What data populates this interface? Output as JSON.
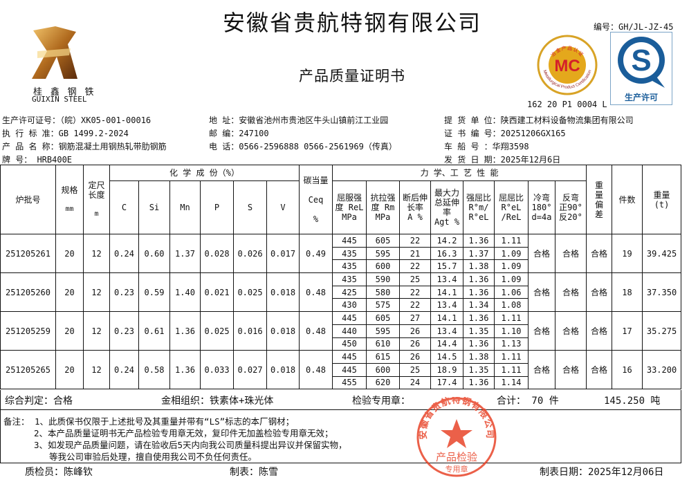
{
  "company": "安徽省贵航特钢有限公司",
  "doc_title": "产品质量证明书",
  "doc_number": "编号：GH/JL-JZ-45",
  "logo": {
    "cn": "桂 鑫 钢 铁",
    "en": "GUIXIN STEEL"
  },
  "mc_mark": {
    "letters": "MC",
    "ring_text_cn": "冶金产品认证",
    "ring_text_en": "Metallurgical Product Certification",
    "code": "162 20 P1 0004 L"
  },
  "qs_mark": {
    "letter": "S",
    "caption": "生产许可"
  },
  "info": {
    "license": "生产许可证号：（皖）XK05-001-00016",
    "standard": "执 行 标 准：GB 1499.2-2024",
    "product": "产 品 名 称：钢筋混凝土用钢热轧带肋钢筋",
    "grade": "牌       号：    HRB400E",
    "address": "地   址：安徽省池州市贵池区牛头山镇前江工业园",
    "postcode": "邮   编：247100",
    "phone": "电   话：0566-2596888  0566-2561969（传真）",
    "consignee": "提 货 单 位：陕西建工材料设备物流集团有限公司",
    "cert_no": "证 书 编 号：20251206GX165",
    "vehicle": "车   船   号 ：华翔3598",
    "ship_date": "发 货 日 期：2025年12月6日"
  },
  "table_headers": {
    "batch": "炉批号",
    "spec": "规格",
    "spec_unit": "mm",
    "length": "定尺长度",
    "length_unit": "m",
    "chem_group": "化 学 成 份（%）",
    "chem": [
      "C",
      "Si",
      "Mn",
      "P",
      "S",
      "V"
    ],
    "ceq": "碳当量",
    "ceq_sym": "Ceq",
    "ceq_unit": "%",
    "mech_group": "力 学、工 艺 性 能",
    "mech": [
      "屈服强度 ReL MPa",
      "抗拉强度 Rm MPa",
      "断后伸长率 A %",
      "最大力总延伸率 Agt %",
      "强屈比 R°m/ R°eL",
      "屈屈比 R°eL /ReL",
      "冷弯 180° d=4a",
      "反弯 正90° 反20°"
    ],
    "weight_dev": "重量偏差",
    "pieces": "件数",
    "weight": "重量 (t)"
  },
  "rows": [
    {
      "batch": "251205261",
      "spec": "20",
      "length": "12",
      "chem": [
        "0.24",
        "0.60",
        "1.37",
        "0.028",
        "0.026",
        "0.017"
      ],
      "ceq": "0.49",
      "mech": [
        [
          "445",
          "605",
          "22",
          "14.2",
          "1.36",
          "1.11"
        ],
        [
          "435",
          "595",
          "21",
          "16.3",
          "1.37",
          "1.09"
        ],
        [
          "435",
          "600",
          "22",
          "15.7",
          "1.38",
          "1.09"
        ]
      ],
      "cold_bend": "合格",
      "reverse_bend": "合格",
      "weight_dev": "合格",
      "pieces": "19",
      "weight": "39.425"
    },
    {
      "batch": "251205260",
      "spec": "20",
      "length": "12",
      "chem": [
        "0.23",
        "0.59",
        "1.40",
        "0.021",
        "0.025",
        "0.018"
      ],
      "ceq": "0.48",
      "mech": [
        [
          "435",
          "590",
          "25",
          "13.4",
          "1.36",
          "1.09"
        ],
        [
          "425",
          "580",
          "22",
          "14.1",
          "1.36",
          "1.06"
        ],
        [
          "430",
          "575",
          "22",
          "13.4",
          "1.34",
          "1.08"
        ]
      ],
      "cold_bend": "合格",
      "reverse_bend": "合格",
      "weight_dev": "合格",
      "pieces": "18",
      "weight": "37.350"
    },
    {
      "batch": "251205259",
      "spec": "20",
      "length": "12",
      "chem": [
        "0.23",
        "0.61",
        "1.36",
        "0.025",
        "0.016",
        "0.018"
      ],
      "ceq": "0.48",
      "mech": [
        [
          "445",
          "605",
          "27",
          "14.1",
          "1.36",
          "1.11"
        ],
        [
          "440",
          "595",
          "26",
          "13.4",
          "1.35",
          "1.10"
        ],
        [
          "450",
          "610",
          "26",
          "14.4",
          "1.36",
          "1.13"
        ]
      ],
      "cold_bend": "合格",
      "reverse_bend": "合格",
      "weight_dev": "合格",
      "pieces": "17",
      "weight": "35.275"
    },
    {
      "batch": "251205265",
      "spec": "20",
      "length": "12",
      "chem": [
        "0.24",
        "0.58",
        "1.36",
        "0.033",
        "0.027",
        "0.018"
      ],
      "ceq": "0.48",
      "mech": [
        [
          "445",
          "615",
          "26",
          "14.5",
          "1.38",
          "1.11"
        ],
        [
          "445",
          "600",
          "25",
          "18.9",
          "1.35",
          "1.11"
        ],
        [
          "455",
          "620",
          "24",
          "17.4",
          "1.36",
          "1.14"
        ]
      ],
      "cold_bend": "合格",
      "reverse_bend": "合格",
      "weight_dev": "合格",
      "pieces": "16",
      "weight": "33.200"
    }
  ],
  "summary": {
    "judgement": "综合判定：合格",
    "microstructure": "金相组织：铁素体+珠光体",
    "inspection_seal": "检验专用章：",
    "total_label": "合计：  70 件",
    "total_weight": "145.250  吨"
  },
  "remarks": [
    "备注：  1、此质保书仅限于上述批号及其重量并带有“LS”标志的本厂钢材；",
    "2、本产品质量证明书无产品检验专用章无效，复印件无加盖检验专用章无效；",
    "3、如发现产品质量问题，请在验收后5天内向我公司质量科提出异议并保留实物，",
    "等我公司审验后处理，擅自使用我公司不负任何责任。"
  ],
  "stamp": {
    "ring_text": "安徽省贵航特钢有限公司",
    "line1": "产品检验",
    "line2": "专用章",
    "color": "#e8452a"
  },
  "footer": {
    "inspector": "质检员：陈峰钦",
    "preparer": "制表：陈雪",
    "date": "制表日期：2025年12月06日"
  }
}
